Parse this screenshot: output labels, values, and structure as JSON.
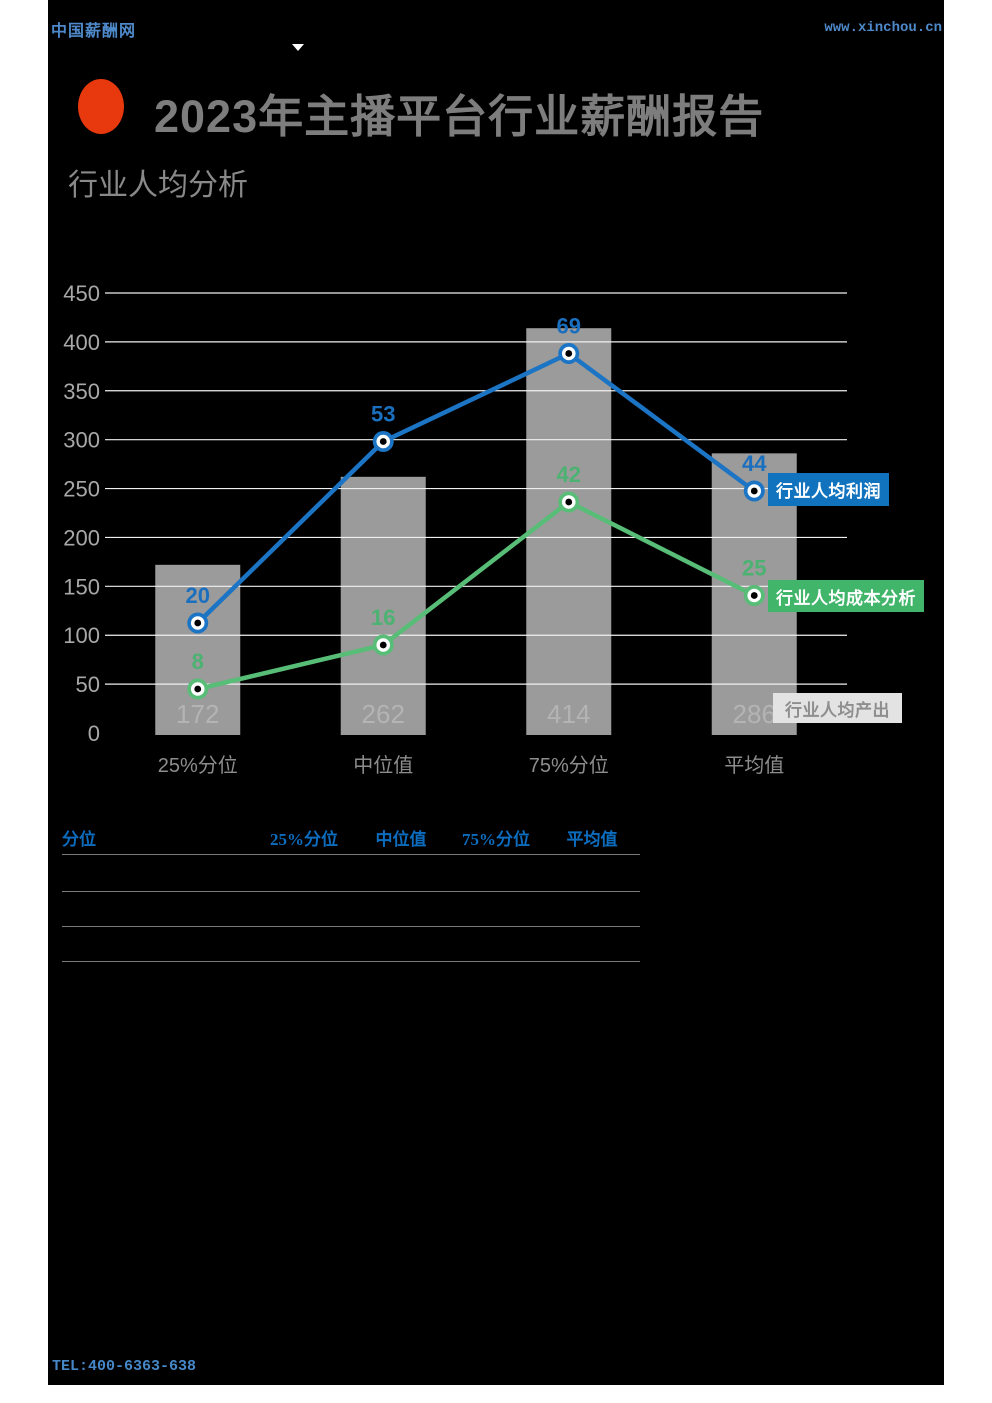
{
  "header": {
    "site_name": "中国薪酬网",
    "site_url": "www.xinchou.cn"
  },
  "title": "2023年主播平台行业薪酬报告",
  "subtitle": "行业人均分析",
  "accent_colors": {
    "bullet_red": "#e8380d",
    "header_blue": "#4e89c9",
    "table_header_blue": "#0c6cbe",
    "profit_blue": "#1173be",
    "cost_green": "#41b56a",
    "output_gray": "#e3e3e3"
  },
  "chart_data": {
    "type": "combo-bar-line",
    "categories": [
      "25%分位",
      "中位值",
      "75%分位",
      "平均值"
    ],
    "series": [
      {
        "name": "行业人均产出",
        "type": "bar",
        "axis": "left",
        "values": [
          172,
          262,
          414,
          286
        ],
        "color": "#9b9b9b",
        "label_color": "#b4b4b4",
        "box_color": "#e3e3e3",
        "box_text_color": "#8e8e8e"
      },
      {
        "name": "行业人均利润",
        "type": "line",
        "axis": "right",
        "values": [
          20,
          53,
          69,
          44
        ],
        "color": "#1b74c4",
        "label_color": "#1b6fbf",
        "box_color": "#1173be",
        "box_text_color": "#ffffff"
      },
      {
        "name": "行业人均成本分析",
        "type": "line",
        "axis": "right",
        "values": [
          8,
          16,
          42,
          25
        ],
        "color": "#57bd77",
        "label_color": "#4cb272",
        "box_color": "#41b56a",
        "box_text_color": "#ffffff"
      }
    ],
    "left_axis": {
      "min": 0,
      "max": 450,
      "step": 50,
      "tick_labels": [
        "0",
        "50",
        "100",
        "150",
        "200",
        "250",
        "300",
        "350",
        "400",
        "450"
      ],
      "tick_color": "#a8a8a8"
    },
    "right_axis": {
      "min": 0,
      "max": 80,
      "visible": false
    },
    "gridlines": {
      "color": "#f0f0f0",
      "levels": [
        50,
        100,
        150,
        200,
        250,
        300,
        350,
        400,
        450
      ]
    },
    "category_label_color": "#8d8d8d",
    "background": "#000000",
    "legend_position": "right-inline"
  },
  "table": {
    "headers": [
      "分位",
      "25%分位",
      "中位值",
      "75%分位",
      "平均值"
    ],
    "rows": [
      [
        "",
        "",
        "",
        "",
        ""
      ],
      [
        "",
        "",
        "",
        "",
        ""
      ],
      [
        "",
        "",
        "",
        "",
        ""
      ]
    ]
  },
  "footer": {
    "tel": "TEL:400-6363-638"
  }
}
